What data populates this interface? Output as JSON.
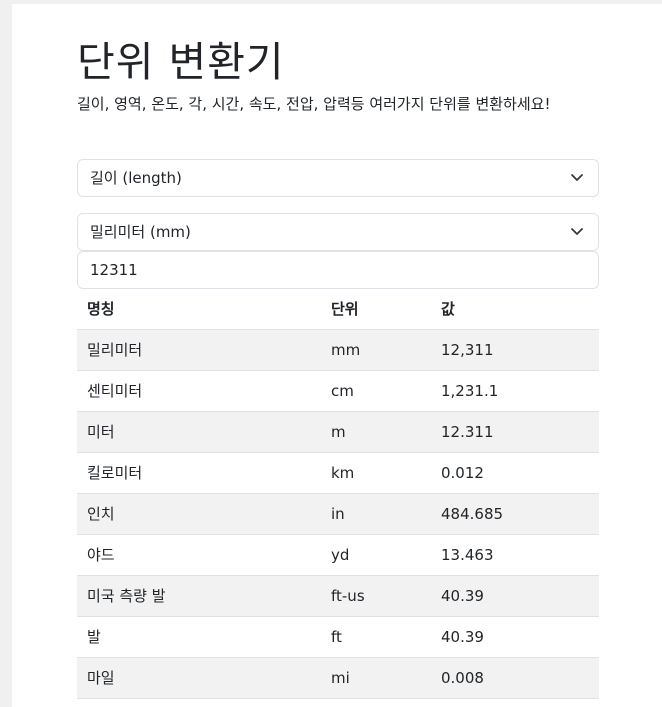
{
  "title": "단위 변환기",
  "description": "길이, 영역, 온도, 각, 시간, 속도, 전압, 압력등 여러가지 단위를 변환하세요!",
  "category_select": {
    "value": "길이 (length)"
  },
  "unit_select": {
    "value": "밀리미터 (mm)"
  },
  "amount_input": {
    "value": "12311"
  },
  "table": {
    "headers": [
      "명칭",
      "단위",
      "값"
    ],
    "rows": [
      [
        "밀리미터",
        "mm",
        "12,311"
      ],
      [
        "센티미터",
        "cm",
        "1,231.1"
      ],
      [
        "미터",
        "m",
        "12.311"
      ],
      [
        "킬로미터",
        "km",
        "0.012"
      ],
      [
        "인치",
        "in",
        "484.685"
      ],
      [
        "야드",
        "yd",
        "13.463"
      ],
      [
        "미국 측량 발",
        "ft-us",
        "40.39"
      ],
      [
        "발",
        "ft",
        "40.39"
      ],
      [
        "마일",
        "mi",
        "0.008"
      ]
    ]
  }
}
